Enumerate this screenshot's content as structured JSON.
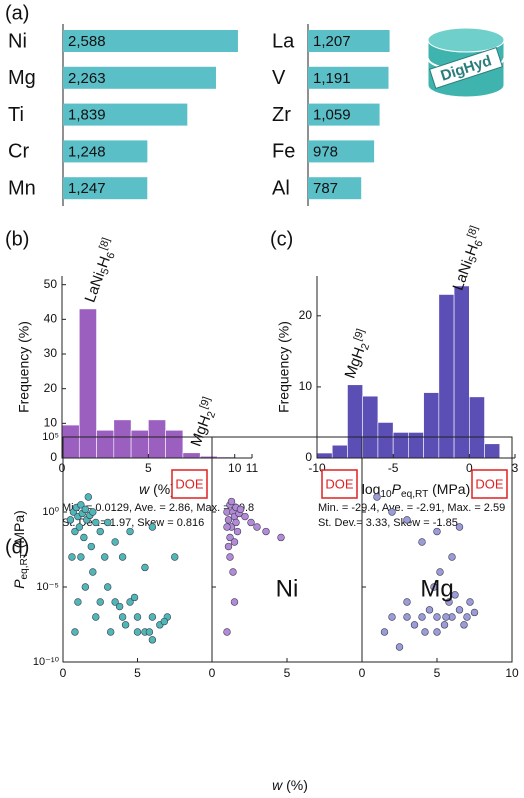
{
  "chart_data": [
    {
      "type": "hbar",
      "panel_label": "(a)",
      "categories": [
        "Ni",
        "Mg",
        "Ti",
        "Cr",
        "Mn"
      ],
      "values": [
        2588,
        2263,
        1839,
        1248,
        1247
      ],
      "value_labels": [
        "2,588",
        "2,263",
        "1,839",
        "1,248",
        "1,247"
      ],
      "color": "#5bbfc8"
    },
    {
      "type": "hbar",
      "categories": [
        "La",
        "V",
        "Zr",
        "Fe",
        "Al"
      ],
      "values": [
        1207,
        1191,
        1059,
        978,
        787
      ],
      "value_labels": [
        "1,207",
        "1,191",
        "1,059",
        "978",
        "787"
      ],
      "color": "#5bbfc8",
      "logo_text": "DigHyd"
    },
    {
      "type": "histogram",
      "panel_label": "(b)",
      "color": "#9b5fc0",
      "bins": [
        0,
        1,
        2,
        3,
        4,
        5,
        6,
        7,
        8,
        9,
        10,
        11
      ],
      "values": [
        9.5,
        43,
        8,
        11,
        8,
        11,
        8,
        1.5,
        0.5,
        0.3,
        0.2
      ],
      "xlim": [
        0,
        11
      ],
      "xticks": [
        0,
        5,
        10,
        11
      ],
      "ylim": [
        0,
        52.5
      ],
      "yticks": [
        0,
        10,
        20,
        30,
        40,
        50
      ],
      "xlabel": [
        {
          "text": "w",
          "style": "italic"
        },
        {
          "text": " (%)"
        }
      ],
      "ylabel": "Frequency (%)",
      "annotations": [
        [
          {
            "text": "LaNi"
          },
          {
            "text": "5",
            "style": "sub"
          },
          {
            "text": "H"
          },
          {
            "text": "6",
            "style": "sub"
          },
          {
            "text": "[8]",
            "style": "sup"
          }
        ],
        [
          {
            "text": "MgH"
          },
          {
            "text": "2",
            "style": "sub"
          },
          {
            "text": "[9]",
            "style": "sup"
          }
        ]
      ],
      "stats": [
        "Min. = 0.0129, Ave. = 2.86, Max. = 10.8",
        "St. Dev.= 1.97, Skew = 0.816"
      ]
    },
    {
      "type": "histogram",
      "panel_label": "(c)",
      "color": "#5b4fb5",
      "bins": [
        -10,
        -9,
        -8,
        -7,
        -6,
        -5,
        -4,
        -3,
        -2,
        -1,
        0,
        1,
        2
      ],
      "values": [
        0.7,
        1.8,
        10.3,
        8.7,
        5,
        3.6,
        3.6,
        9.2,
        23,
        24.2,
        8.6,
        2
      ],
      "xlim": [
        -10,
        3
      ],
      "xticks": [
        -10,
        -5,
        0,
        3
      ],
      "ylim": [
        0,
        25.6
      ],
      "yticks": [
        0,
        10,
        20
      ],
      "xlabel": [
        {
          "text": "log"
        },
        {
          "text": "10",
          "style": "sub"
        },
        {
          "text": "P",
          "style": "italic"
        },
        {
          "text": "eq,RT",
          "style": "sub"
        },
        {
          "text": " (MPa)"
        }
      ],
      "ylabel": "Frequency (%)",
      "annotations": [
        [
          {
            "text": "LaNi"
          },
          {
            "text": "5",
            "style": "sub"
          },
          {
            "text": "H"
          },
          {
            "text": "6",
            "style": "sub"
          },
          {
            "text": "[8]",
            "style": "sup"
          }
        ],
        [
          {
            "text": "MgH"
          },
          {
            "text": "2",
            "style": "sub"
          },
          {
            "text": "[9]",
            "style": "sup"
          }
        ]
      ],
      "stats": [
        "Min. = -29.4, Ave. = -2.91, Max. = 2.59",
        "St. Dev.= 3.33, Skew = -1.85"
      ]
    },
    {
      "type": "scatter",
      "panel_label": "(d)",
      "color": "#4fb8b4",
      "log_y": true,
      "box_label": "DOE",
      "xlabel": [
        {
          "text": "w",
          "style": "italic"
        },
        {
          "text": " (%)"
        }
      ],
      "ylabel": [
        {
          "text": "P",
          "style": "italic"
        },
        {
          "text": "eq,RT",
          "style": "sub"
        },
        {
          "text": " (MPa)"
        }
      ],
      "xlim": [
        0,
        10
      ],
      "xticks": [
        0,
        5
      ],
      "ylim": [
        1e-10,
        100000.0
      ],
      "yticks": [
        {
          "value": 1e-10,
          "label": "10⁻¹⁰"
        },
        {
          "value": 1e-05,
          "label": "10⁻⁵"
        },
        {
          "value": 1,
          "label": "10⁰"
        },
        {
          "value": 100000.0,
          "label": "10⁵"
        }
      ],
      "x": [
        0.5,
        0.7,
        0.8,
        0.9,
        1.0,
        1.1,
        1.2,
        1.3,
        1.4,
        1.5,
        1.6,
        1.7,
        1.8,
        1.9,
        2.0,
        2.2,
        1.2,
        0.6,
        2.5,
        3,
        3.5,
        2.8,
        4,
        4.5,
        1.5,
        2,
        1,
        0.8,
        2.5,
        3,
        3.5,
        4,
        4.5,
        5,
        5.5,
        6,
        6.5,
        7,
        5,
        6,
        4.2,
        5.8,
        6.8,
        3.8,
        4.8,
        7.5,
        6,
        5.5,
        2.2,
        3.2
      ],
      "y": [
        0.3,
        1,
        0.05,
        2,
        0.5,
        0.1,
        3,
        0.8,
        0.02,
        1.5,
        0.3,
        10,
        0.6,
        0.005,
        1,
        0.2,
        0.001,
        0.001,
        0.05,
        0.2,
        0.01,
        0.001,
        0.001,
        0.05,
        1e-05,
        0.0001,
        1e-06,
        1e-08,
        1e-06,
        1e-05,
        1e-06,
        1e-07,
        1e-06,
        1e-07,
        1e-08,
        1e-07,
        3e-08,
        1e-07,
        1e-08,
        3e-09,
        3e-08,
        1e-08,
        5e-08,
        5e-07,
        2e-06,
        0.001,
        0.1,
        0.0002,
        1e-07,
        1e-08
      ]
    },
    {
      "type": "scatter",
      "name": "Ni",
      "color": "#b48ad6",
      "log_y": true,
      "box_label": "DOE",
      "xlim": [
        0,
        10
      ],
      "xticks": [
        0,
        5
      ],
      "ylim": [
        1e-10,
        100000.0
      ],
      "x": [
        1.0,
        1.1,
        1.2,
        1.3,
        1.4,
        1.5,
        1.6,
        1.7,
        1.2,
        1.5,
        1.8,
        1.3,
        1.6,
        2.2,
        2.6,
        3,
        3.6,
        4.6,
        1.4,
        1.2,
        1.0,
        1.5,
        1.1,
        1.9,
        1.0
      ],
      "y": [
        1,
        0.3,
        3,
        0.1,
        1,
        0.5,
        2,
        0.05,
        0.02,
        0.01,
        0.8,
        5,
        0.2,
        0.5,
        0.2,
        0.1,
        0.05,
        0.02,
        0.0001,
        0.001,
        1e-08,
        1e-06,
        0.005,
        1.5,
        0.1
      ]
    },
    {
      "type": "scatter",
      "name": "Mg",
      "color": "#9b9bd6",
      "log_y": true,
      "box_label": "DOE",
      "xlim": [
        0,
        10
      ],
      "xticks": [
        0,
        5,
        10
      ],
      "ylim": [
        1e-10,
        100000.0
      ],
      "x": [
        1,
        2,
        3,
        4,
        5,
        6,
        6.5,
        5.2,
        4.8,
        1.5,
        2,
        3,
        3.5,
        4,
        4.5,
        5,
        5.5,
        6,
        6.5,
        7,
        7.5,
        5.8,
        6.2,
        4.2,
        5,
        6.8,
        3,
        7.2,
        2.5,
        5.6
      ],
      "y": [
        10,
        1,
        0.3,
        0.01,
        0.05,
        0.001,
        0.1,
        0.0001,
        1e-05,
        1e-08,
        1e-07,
        1e-07,
        3e-08,
        1e-07,
        3e-07,
        1e-07,
        3e-08,
        1e-07,
        3e-07,
        1e-07,
        2e-07,
        1e-06,
        3e-06,
        1e-08,
        1e-08,
        3e-08,
        1e-06,
        1e-06,
        1e-09,
        1e-07
      ]
    }
  ]
}
